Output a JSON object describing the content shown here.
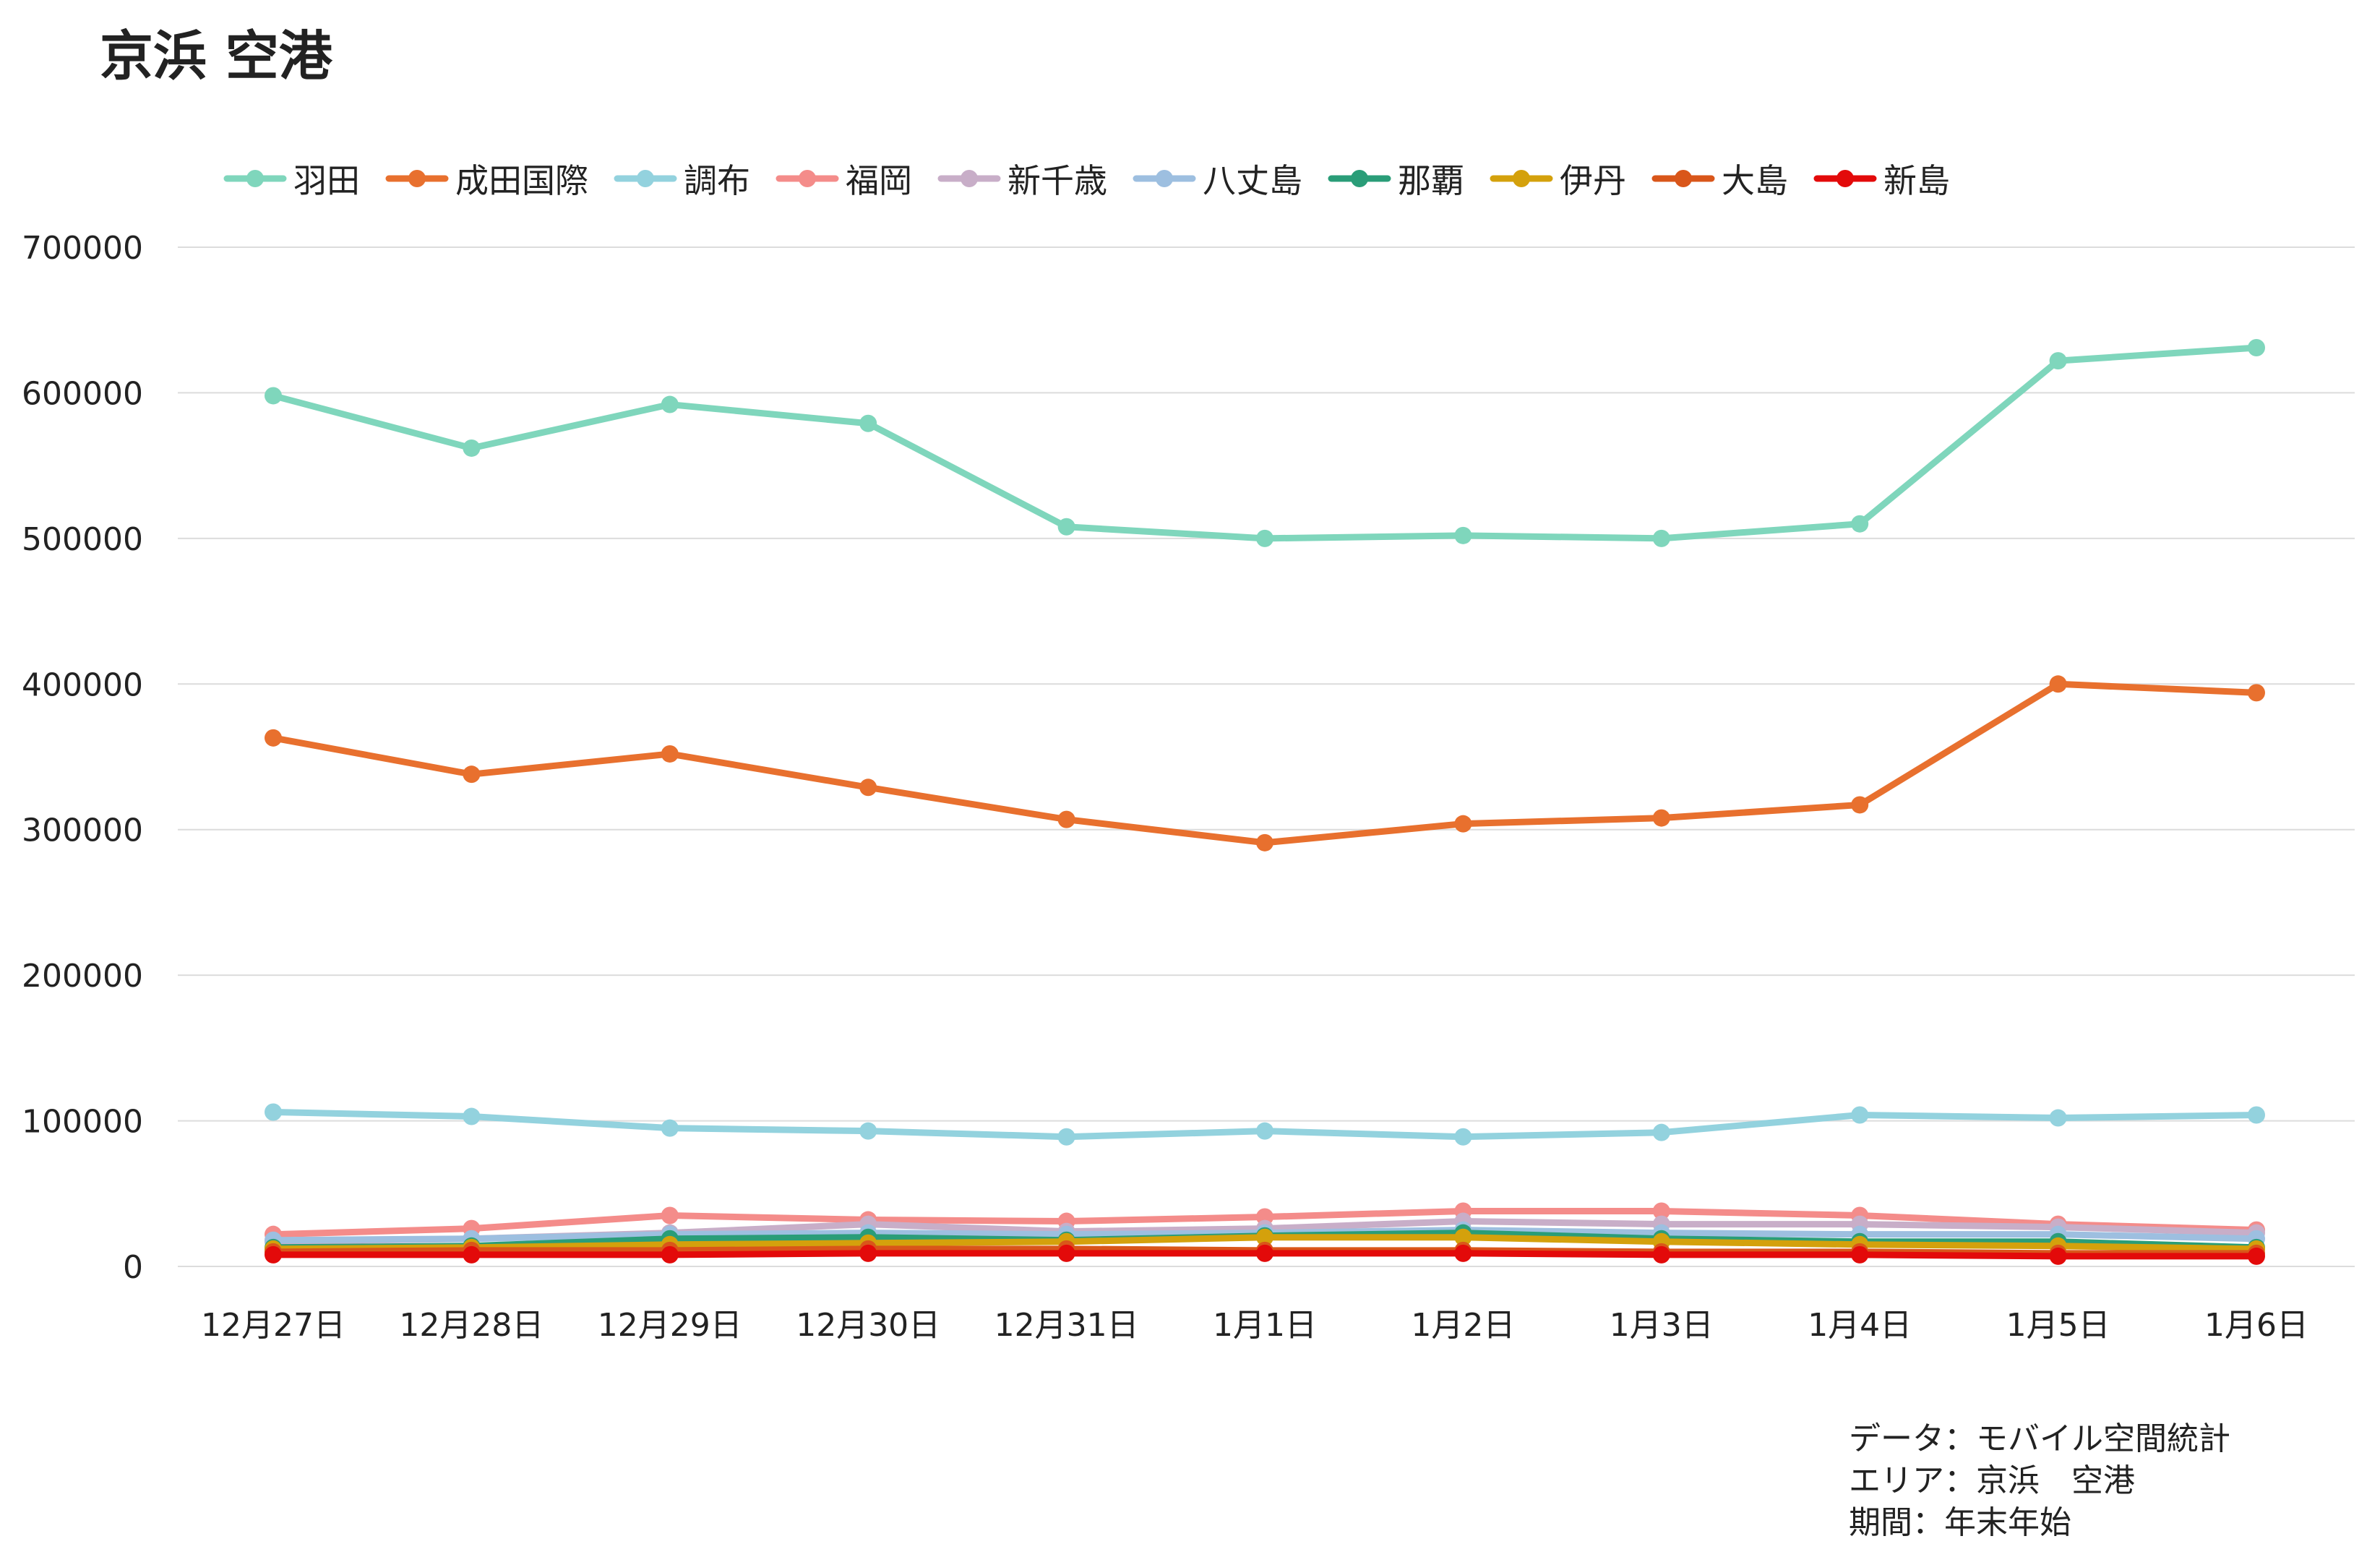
{
  "chart_data": {
    "type": "line",
    "title": "京浜 空港",
    "xlabel": "",
    "ylabel": "",
    "categories": [
      "12月27日",
      "12月28日",
      "12月29日",
      "12月30日",
      "12月31日",
      "1月1日",
      "1月2日",
      "1月3日",
      "1月4日",
      "1月5日",
      "1月6日"
    ],
    "ylim": [
      0,
      700000
    ],
    "yticks": [
      0,
      100000,
      200000,
      300000,
      400000,
      500000,
      600000,
      700000
    ],
    "grid": true,
    "legend_position": "top",
    "series": [
      {
        "name": "羽田",
        "color": "#7fd6bc",
        "values": [
          598000,
          562000,
          592000,
          579000,
          508000,
          500000,
          502000,
          500000,
          510000,
          622000,
          631000
        ]
      },
      {
        "name": "成田国際",
        "color": "#e8702e",
        "values": [
          363000,
          338000,
          352000,
          329000,
          307000,
          291000,
          304000,
          308000,
          317000,
          400000,
          394000
        ]
      },
      {
        "name": "調布",
        "color": "#93d2de",
        "values": [
          106000,
          103000,
          95000,
          93000,
          89000,
          93000,
          89000,
          92000,
          104000,
          102000,
          104000
        ]
      },
      {
        "name": "福岡",
        "color": "#f48c8a",
        "values": [
          22000,
          26000,
          35000,
          32000,
          31000,
          34000,
          38000,
          38000,
          35000,
          29000,
          25000
        ]
      },
      {
        "name": "新千歳",
        "color": "#c8aec8",
        "values": [
          17000,
          19000,
          23000,
          29000,
          24000,
          26000,
          31000,
          29000,
          29000,
          27000,
          23000
        ]
      },
      {
        "name": "八丈島",
        "color": "#9dbfe0",
        "values": [
          18000,
          19000,
          22000,
          23000,
          22000,
          23000,
          25000,
          23000,
          22000,
          22000,
          19000
        ]
      },
      {
        "name": "那覇",
        "color": "#2a9d78",
        "values": [
          13000,
          14000,
          19000,
          20000,
          18000,
          21000,
          23000,
          19000,
          17000,
          17000,
          13000
        ]
      },
      {
        "name": "伊丹",
        "color": "#d4a10c",
        "values": [
          12000,
          13000,
          15000,
          16000,
          17000,
          20000,
          20000,
          17000,
          15000,
          14000,
          12000
        ]
      },
      {
        "name": "大島",
        "color": "#d9561a",
        "values": [
          10000,
          11000,
          11000,
          12000,
          12000,
          11000,
          11000,
          10000,
          10000,
          9000,
          9000
        ]
      },
      {
        "name": "新島",
        "color": "#e30a0a",
        "values": [
          8000,
          8000,
          8000,
          9000,
          9000,
          9000,
          9000,
          8000,
          8000,
          7000,
          7000
        ]
      }
    ]
  },
  "source_note": {
    "line1": "データ：モバイル空間統計",
    "line2": "エリア：京浜　空港",
    "line3": "期間：年末年始"
  }
}
